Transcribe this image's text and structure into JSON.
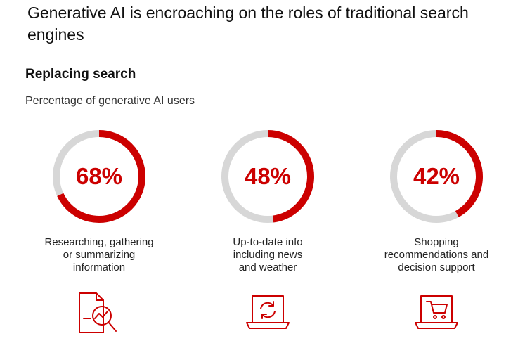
{
  "header": {
    "title": "Generative AI is encroaching on the roles of traditional search engines"
  },
  "panel": {
    "heading": "Replacing search",
    "subtitle": "Percentage of generative AI users"
  },
  "colors": {
    "accent": "#cc0000",
    "track": "#d7d7d7"
  },
  "chart_data": {
    "type": "donut",
    "title": "Replacing search",
    "subtitle": "Percentage of generative AI users",
    "unit": "%",
    "items": [
      {
        "value": 68,
        "label": "68%",
        "caption": [
          "Researching, gathering",
          "or summarizing",
          "information"
        ],
        "icon": "document-magnifier-chart-icon"
      },
      {
        "value": 48,
        "label": "48%",
        "caption": [
          "Up-to-date info",
          "including news",
          "and weather"
        ],
        "icon": "laptop-refresh-icon"
      },
      {
        "value": 42,
        "label": "42%",
        "caption": [
          "Shopping",
          "recommendations and",
          "decision support"
        ],
        "icon": "laptop-shopping-cart-icon"
      }
    ]
  }
}
